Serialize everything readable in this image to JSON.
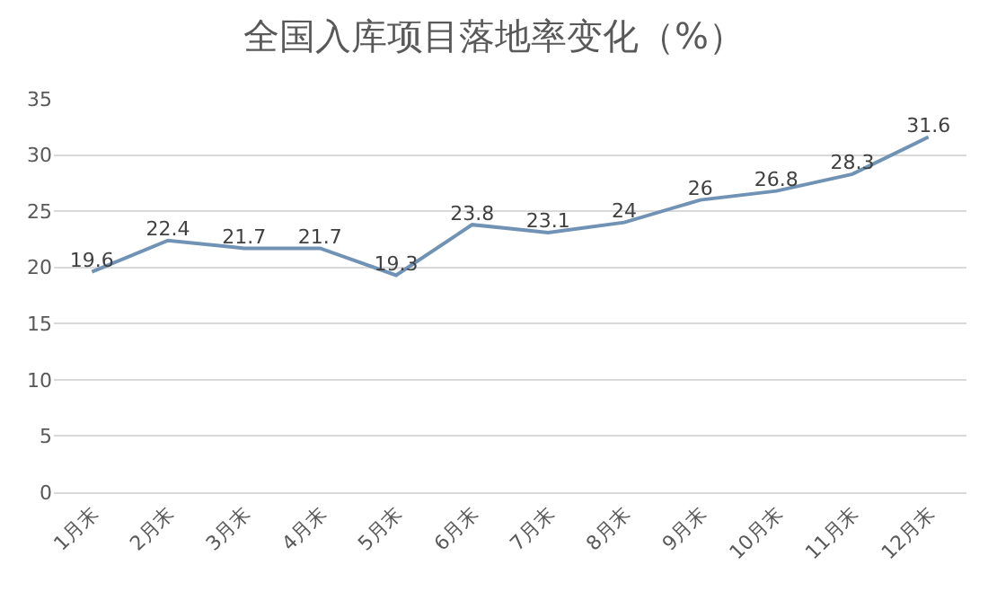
{
  "chart_data": {
    "type": "line",
    "title": "全国入库项目落地率变化（%）",
    "categories": [
      "1月末",
      "2月末",
      "3月末",
      "4月末",
      "5月末",
      "6月末",
      "7月末",
      "8月末",
      "9月末",
      "10月末",
      "11月末",
      "12月末"
    ],
    "values": [
      19.6,
      22.4,
      21.7,
      21.7,
      19.3,
      23.8,
      23.1,
      24,
      26,
      26.8,
      28.3,
      31.6
    ],
    "color": "#7093b5",
    "ylim": [
      0,
      35
    ],
    "yticks": [
      0,
      5,
      10,
      15,
      20,
      25,
      30,
      35
    ],
    "grid": "y",
    "data_labels": true,
    "marker": "none",
    "line_style": "solid"
  }
}
